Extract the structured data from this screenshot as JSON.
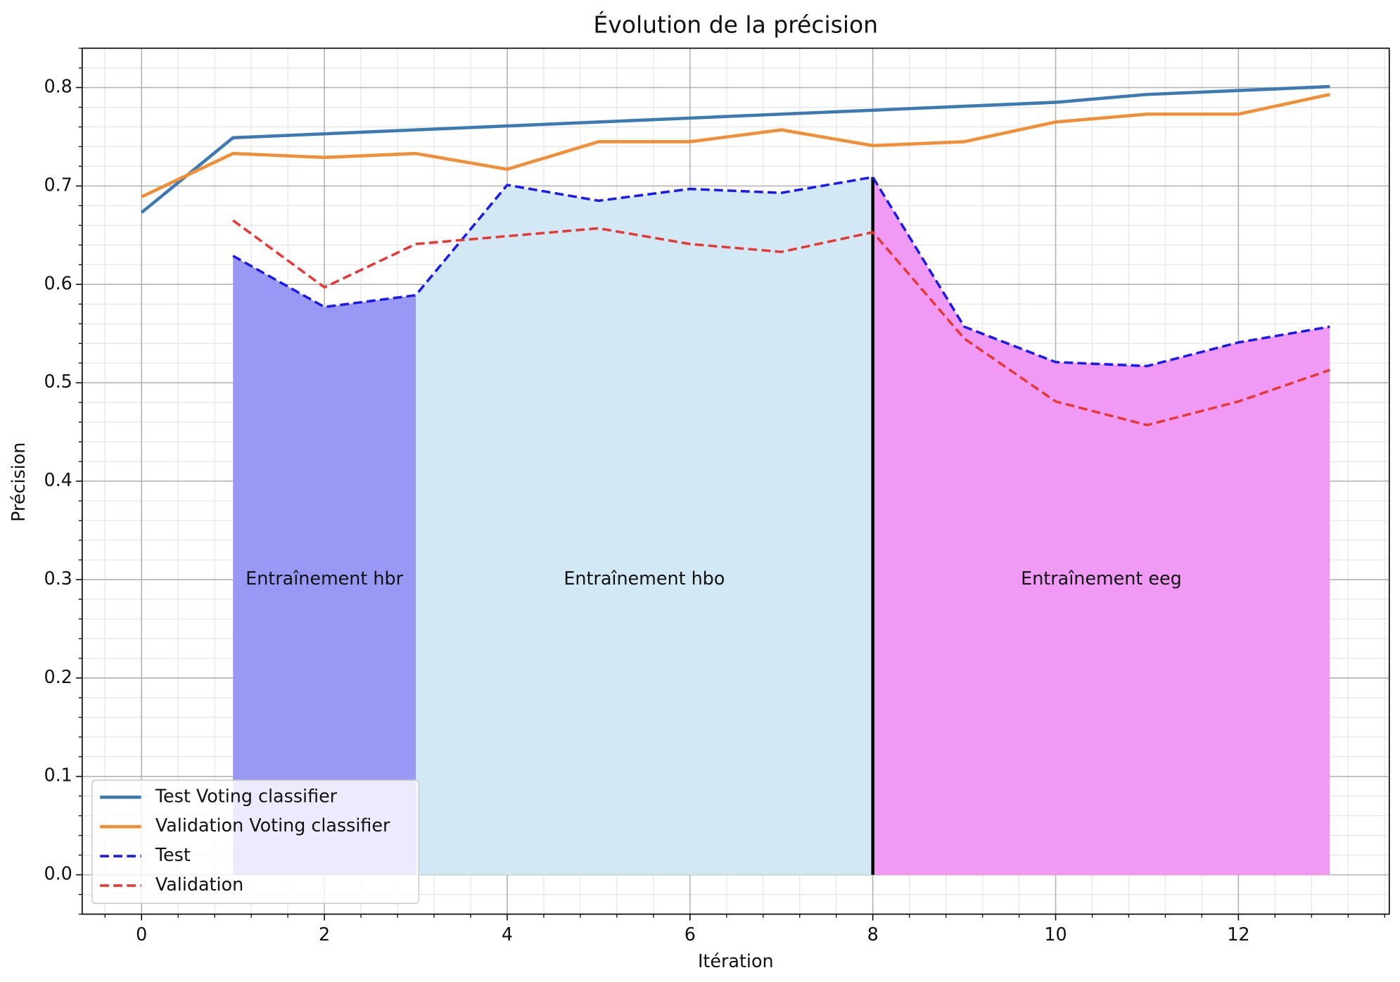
{
  "chart_data": {
    "type": "line",
    "title": "Évolution de la précision",
    "x_label": "Itération",
    "y_label": "Précision",
    "x": [
      0,
      1,
      2,
      3,
      4,
      5,
      6,
      7,
      8,
      9,
      10,
      11,
      12,
      13
    ],
    "series": [
      {
        "name": "Test Voting classifier",
        "color": "#3d7ab4",
        "linestyle": "solid",
        "values": [
          0.673,
          0.749,
          0.753,
          0.757,
          0.761,
          0.765,
          0.769,
          0.773,
          0.777,
          0.781,
          0.785,
          0.793,
          0.797,
          0.801
        ]
      },
      {
        "name": "Validation Voting classifier",
        "color": "#f28e36",
        "linestyle": "solid",
        "values": [
          0.689,
          0.733,
          0.729,
          0.733,
          0.717,
          0.745,
          0.745,
          0.757,
          0.741,
          0.745,
          0.765,
          0.773,
          0.773,
          0.793
        ]
      },
      {
        "name": "Test",
        "color": "#1a1aee",
        "linestyle": "dashed",
        "values": [
          null,
          0.629,
          0.577,
          0.589,
          0.701,
          0.685,
          0.697,
          0.693,
          0.709,
          0.557,
          0.521,
          0.517,
          0.541,
          0.557
        ]
      },
      {
        "name": "Validation",
        "color": "#e53935",
        "linestyle": "dashed",
        "values": [
          null,
          0.665,
          0.597,
          0.641,
          0.649,
          0.657,
          0.641,
          0.633,
          0.653,
          0.545,
          0.481,
          0.457,
          0.481,
          0.513
        ]
      }
    ],
    "regions": [
      {
        "label": "Entraînement hbr",
        "x": [
          1,
          3
        ],
        "color": "#9999f5"
      },
      {
        "label": "Entraînement hbo",
        "x": [
          3,
          8
        ],
        "color": "#d3e8f5"
      },
      {
        "label": "Entraînement eeg",
        "x": [
          8,
          13
        ],
        "color": "#f09af5"
      }
    ],
    "region_series": 2,
    "vline": {
      "x": 8,
      "color": "#000000"
    },
    "annotation_y": 0.3,
    "xlim": [
      -0.65,
      13.65
    ],
    "ylim": [
      -0.04,
      0.84
    ],
    "xticks": [
      0,
      2,
      4,
      6,
      8,
      10,
      12
    ],
    "yticks": [
      {
        "value": 0,
        "label": "0.0"
      },
      0.1,
      0.2,
      0.3,
      0.4,
      0.5,
      0.6,
      0.7,
      0.8
    ],
    "grid": true,
    "minor_grid": true,
    "legend": "lower left"
  }
}
